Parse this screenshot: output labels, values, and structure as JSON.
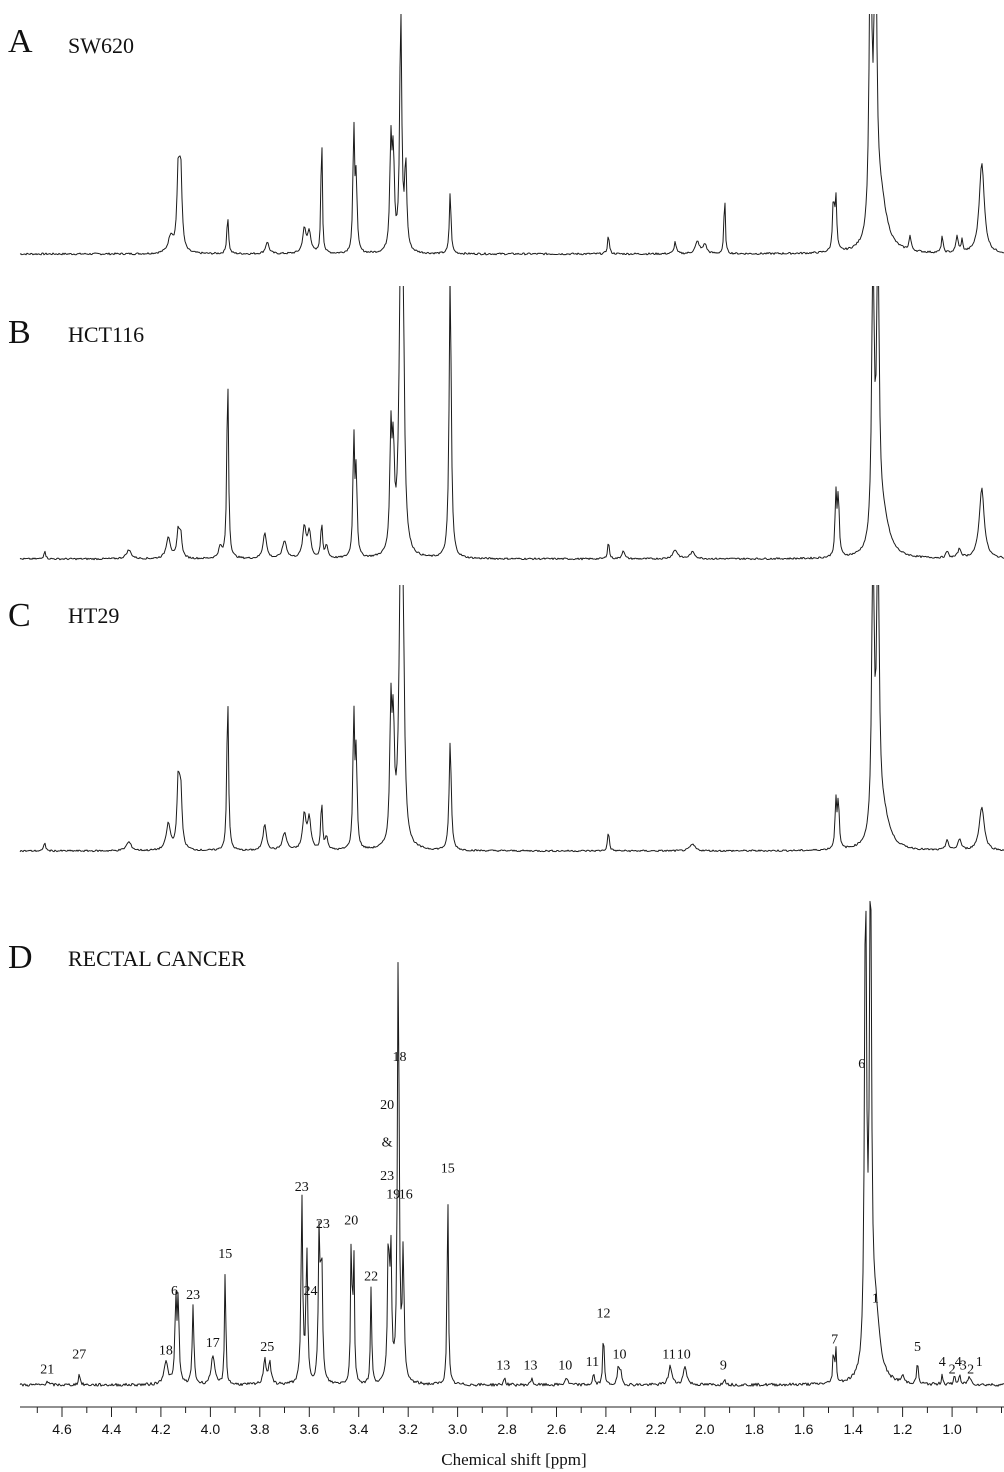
{
  "chart_data": {
    "type": "line",
    "xlabel": "Chemical shift [ppm]",
    "xlim": [
      4.77,
      0.79
    ],
    "x_reversed": true,
    "x_ticks": [
      "4.6",
      "4.4",
      "4.2",
      "4.0",
      "3.8",
      "3.6",
      "3.4",
      "3.2",
      "3.0",
      "2.8",
      "2.6",
      "2.4",
      "2.2",
      "2.0",
      "1.8",
      "1.6",
      "1.4",
      "1.2",
      "1.0"
    ],
    "grid": false,
    "panels": [
      {
        "letter": "A",
        "name": "SW620",
        "linecolor": "#1a1a1a",
        "peaks": [
          {
            "x": 4.13,
            "h": 0.32,
            "w": 0.006
          },
          {
            "x": 4.12,
            "h": 0.33,
            "w": 0.006
          },
          {
            "x": 4.16,
            "h": 0.07,
            "w": 0.012
          },
          {
            "x": 3.93,
            "h": 0.16,
            "w": 0.004
          },
          {
            "x": 3.77,
            "h": 0.05,
            "w": 0.008
          },
          {
            "x": 3.62,
            "h": 0.1,
            "w": 0.008
          },
          {
            "x": 3.6,
            "h": 0.09,
            "w": 0.008
          },
          {
            "x": 3.55,
            "h": 0.55,
            "w": 0.003
          },
          {
            "x": 3.42,
            "h": 0.52,
            "w": 0.004
          },
          {
            "x": 3.41,
            "h": 0.3,
            "w": 0.004
          },
          {
            "x": 3.27,
            "h": 0.44,
            "w": 0.005
          },
          {
            "x": 3.26,
            "h": 0.38,
            "w": 0.005
          },
          {
            "x": 3.23,
            "h": 1.0,
            "w": 0.005
          },
          {
            "x": 3.21,
            "h": 0.36,
            "w": 0.005
          },
          {
            "x": 3.03,
            "h": 0.26,
            "w": 0.004
          },
          {
            "x": 2.39,
            "h": 0.08,
            "w": 0.004
          },
          {
            "x": 2.12,
            "h": 0.05,
            "w": 0.005
          },
          {
            "x": 2.03,
            "h": 0.05,
            "w": 0.01
          },
          {
            "x": 2.0,
            "h": 0.04,
            "w": 0.008
          },
          {
            "x": 1.92,
            "h": 0.26,
            "w": 0.003
          },
          {
            "x": 1.48,
            "h": 0.22,
            "w": 0.004
          },
          {
            "x": 1.47,
            "h": 0.22,
            "w": 0.004
          },
          {
            "x": 1.33,
            "h": 1.3,
            "w": 0.006
          },
          {
            "x": 1.31,
            "h": 1.3,
            "w": 0.006
          },
          {
            "x": 1.29,
            "h": 0.22,
            "w": 0.03
          },
          {
            "x": 1.17,
            "h": 0.06,
            "w": 0.005
          },
          {
            "x": 1.04,
            "h": 0.07,
            "w": 0.004
          },
          {
            "x": 0.98,
            "h": 0.07,
            "w": 0.005
          },
          {
            "x": 0.96,
            "h": 0.05,
            "w": 0.004
          },
          {
            "x": 0.88,
            "h": 0.38,
            "w": 0.012
          }
        ]
      },
      {
        "letter": "B",
        "name": "HCT116",
        "linecolor": "#1a1a1a",
        "peaks": [
          {
            "x": 4.67,
            "h": 0.04,
            "w": 0.004
          },
          {
            "x": 4.33,
            "h": 0.04,
            "w": 0.012
          },
          {
            "x": 4.17,
            "h": 0.1,
            "w": 0.01
          },
          {
            "x": 4.13,
            "h": 0.12,
            "w": 0.006
          },
          {
            "x": 4.12,
            "h": 0.1,
            "w": 0.006
          },
          {
            "x": 3.96,
            "h": 0.05,
            "w": 0.008
          },
          {
            "x": 3.93,
            "h": 0.85,
            "w": 0.004
          },
          {
            "x": 3.78,
            "h": 0.12,
            "w": 0.008
          },
          {
            "x": 3.7,
            "h": 0.08,
            "w": 0.01
          },
          {
            "x": 3.62,
            "h": 0.14,
            "w": 0.008
          },
          {
            "x": 3.6,
            "h": 0.12,
            "w": 0.008
          },
          {
            "x": 3.55,
            "h": 0.16,
            "w": 0.004
          },
          {
            "x": 3.53,
            "h": 0.06,
            "w": 0.006
          },
          {
            "x": 3.42,
            "h": 0.55,
            "w": 0.004
          },
          {
            "x": 3.41,
            "h": 0.38,
            "w": 0.004
          },
          {
            "x": 3.27,
            "h": 0.52,
            "w": 0.005
          },
          {
            "x": 3.26,
            "h": 0.42,
            "w": 0.005
          },
          {
            "x": 3.23,
            "h": 1.3,
            "w": 0.008
          },
          {
            "x": 3.22,
            "h": 0.8,
            "w": 0.006
          },
          {
            "x": 3.03,
            "h": 1.3,
            "w": 0.005
          },
          {
            "x": 2.39,
            "h": 0.08,
            "w": 0.004
          },
          {
            "x": 2.33,
            "h": 0.04,
            "w": 0.006
          },
          {
            "x": 2.12,
            "h": 0.04,
            "w": 0.012
          },
          {
            "x": 2.05,
            "h": 0.03,
            "w": 0.012
          },
          {
            "x": 1.47,
            "h": 0.28,
            "w": 0.004
          },
          {
            "x": 1.46,
            "h": 0.28,
            "w": 0.004
          },
          {
            "x": 1.32,
            "h": 1.3,
            "w": 0.006
          },
          {
            "x": 1.3,
            "h": 1.3,
            "w": 0.006
          },
          {
            "x": 1.28,
            "h": 0.18,
            "w": 0.03
          },
          {
            "x": 1.02,
            "h": 0.03,
            "w": 0.006
          },
          {
            "x": 0.97,
            "h": 0.04,
            "w": 0.008
          },
          {
            "x": 0.88,
            "h": 0.32,
            "w": 0.012
          }
        ]
      },
      {
        "letter": "C",
        "name": "HT29",
        "linecolor": "#1a1a1a",
        "peaks": [
          {
            "x": 4.67,
            "h": 0.04,
            "w": 0.004
          },
          {
            "x": 4.33,
            "h": 0.04,
            "w": 0.012
          },
          {
            "x": 4.17,
            "h": 0.12,
            "w": 0.01
          },
          {
            "x": 4.13,
            "h": 0.3,
            "w": 0.006
          },
          {
            "x": 4.12,
            "h": 0.26,
            "w": 0.006
          },
          {
            "x": 3.93,
            "h": 0.72,
            "w": 0.004
          },
          {
            "x": 3.78,
            "h": 0.12,
            "w": 0.008
          },
          {
            "x": 3.7,
            "h": 0.08,
            "w": 0.01
          },
          {
            "x": 3.62,
            "h": 0.16,
            "w": 0.008
          },
          {
            "x": 3.6,
            "h": 0.14,
            "w": 0.008
          },
          {
            "x": 3.55,
            "h": 0.22,
            "w": 0.004
          },
          {
            "x": 3.53,
            "h": 0.06,
            "w": 0.006
          },
          {
            "x": 3.42,
            "h": 0.62,
            "w": 0.004
          },
          {
            "x": 3.41,
            "h": 0.42,
            "w": 0.004
          },
          {
            "x": 3.27,
            "h": 0.6,
            "w": 0.005
          },
          {
            "x": 3.26,
            "h": 0.5,
            "w": 0.005
          },
          {
            "x": 3.23,
            "h": 1.3,
            "w": 0.008
          },
          {
            "x": 3.22,
            "h": 0.7,
            "w": 0.006
          },
          {
            "x": 3.03,
            "h": 0.5,
            "w": 0.005
          },
          {
            "x": 2.39,
            "h": 0.09,
            "w": 0.004
          },
          {
            "x": 2.05,
            "h": 0.03,
            "w": 0.012
          },
          {
            "x": 1.47,
            "h": 0.22,
            "w": 0.004
          },
          {
            "x": 1.46,
            "h": 0.22,
            "w": 0.004
          },
          {
            "x": 1.32,
            "h": 1.3,
            "w": 0.006
          },
          {
            "x": 1.3,
            "h": 1.3,
            "w": 0.006
          },
          {
            "x": 1.28,
            "h": 0.16,
            "w": 0.03
          },
          {
            "x": 1.02,
            "h": 0.05,
            "w": 0.006
          },
          {
            "x": 0.97,
            "h": 0.05,
            "w": 0.008
          },
          {
            "x": 0.88,
            "h": 0.2,
            "w": 0.012
          }
        ]
      },
      {
        "letter": "D",
        "name": "RECTAL CANCER",
        "linecolor": "#1a1a1a",
        "peaks": [
          {
            "x": 4.66,
            "h": 0.01,
            "w": 0.006
          },
          {
            "x": 4.53,
            "h": 0.03,
            "w": 0.004
          },
          {
            "x": 4.18,
            "h": 0.06,
            "w": 0.01
          },
          {
            "x": 4.14,
            "h": 0.22,
            "w": 0.004
          },
          {
            "x": 4.13,
            "h": 0.22,
            "w": 0.004
          },
          {
            "x": 4.07,
            "h": 0.21,
            "w": 0.004
          },
          {
            "x": 3.99,
            "h": 0.08,
            "w": 0.008
          },
          {
            "x": 3.94,
            "h": 0.32,
            "w": 0.003
          },
          {
            "x": 3.78,
            "h": 0.07,
            "w": 0.006
          },
          {
            "x": 3.76,
            "h": 0.06,
            "w": 0.006
          },
          {
            "x": 3.63,
            "h": 0.5,
            "w": 0.004
          },
          {
            "x": 3.61,
            "h": 0.36,
            "w": 0.004
          },
          {
            "x": 3.56,
            "h": 0.4,
            "w": 0.004
          },
          {
            "x": 3.55,
            "h": 0.34,
            "w": 0.004
          },
          {
            "x": 3.43,
            "h": 0.41,
            "w": 0.003
          },
          {
            "x": 3.42,
            "h": 0.36,
            "w": 0.003
          },
          {
            "x": 3.35,
            "h": 0.26,
            "w": 0.003
          },
          {
            "x": 3.28,
            "h": 0.38,
            "w": 0.004
          },
          {
            "x": 3.27,
            "h": 0.34,
            "w": 0.004
          },
          {
            "x": 3.24,
            "h": 1.2,
            "w": 0.004
          },
          {
            "x": 3.22,
            "h": 0.35,
            "w": 0.004
          },
          {
            "x": 3.04,
            "h": 0.55,
            "w": 0.003
          },
          {
            "x": 2.81,
            "h": 0.02,
            "w": 0.004
          },
          {
            "x": 2.7,
            "h": 0.02,
            "w": 0.004
          },
          {
            "x": 2.56,
            "h": 0.02,
            "w": 0.006
          },
          {
            "x": 2.45,
            "h": 0.03,
            "w": 0.004
          },
          {
            "x": 2.41,
            "h": 0.16,
            "w": 0.003
          },
          {
            "x": 2.35,
            "h": 0.05,
            "w": 0.004
          },
          {
            "x": 2.34,
            "h": 0.04,
            "w": 0.004
          },
          {
            "x": 2.14,
            "h": 0.05,
            "w": 0.008
          },
          {
            "x": 2.08,
            "h": 0.05,
            "w": 0.008
          },
          {
            "x": 1.92,
            "h": 0.02,
            "w": 0.004
          },
          {
            "x": 1.48,
            "h": 0.09,
            "w": 0.003
          },
          {
            "x": 1.47,
            "h": 0.09,
            "w": 0.003
          },
          {
            "x": 1.35,
            "h": 1.3,
            "w": 0.005
          },
          {
            "x": 1.33,
            "h": 1.3,
            "w": 0.005
          },
          {
            "x": 1.31,
            "h": 0.18,
            "w": 0.02
          },
          {
            "x": 1.2,
            "h": 0.02,
            "w": 0.005
          },
          {
            "x": 1.14,
            "h": 0.07,
            "w": 0.003
          },
          {
            "x": 1.04,
            "h": 0.03,
            "w": 0.003
          },
          {
            "x": 0.99,
            "h": 0.03,
            "w": 0.003
          },
          {
            "x": 0.97,
            "h": 0.03,
            "w": 0.003
          },
          {
            "x": 0.93,
            "h": 0.02,
            "w": 0.008
          }
        ],
        "peak_labels": [
          {
            "text": "21",
            "x": 4.66,
            "y": 0.01
          },
          {
            "text": "27",
            "x": 4.53,
            "y": 0.05
          },
          {
            "text": "18",
            "x": 4.18,
            "y": 0.06
          },
          {
            "text": "6",
            "x": 4.145,
            "y": 0.22
          },
          {
            "text": "23",
            "x": 4.07,
            "y": 0.21
          },
          {
            "text": "17",
            "x": 3.99,
            "y": 0.08
          },
          {
            "text": "15",
            "x": 3.94,
            "y": 0.32
          },
          {
            "text": "25",
            "x": 3.77,
            "y": 0.07
          },
          {
            "text": "23",
            "x": 3.63,
            "y": 0.5
          },
          {
            "text": "24",
            "x": 3.595,
            "y": 0.22
          },
          {
            "text": "23",
            "x": 3.545,
            "y": 0.4
          },
          {
            "text": "20",
            "x": 3.43,
            "y": 0.41
          },
          {
            "text": "22",
            "x": 3.35,
            "y": 0.26
          },
          {
            "text": "20",
            "x": 3.285,
            "y": 0.72
          },
          {
            "text": "&",
            "x": 3.285,
            "y": 0.62
          },
          {
            "text": "23",
            "x": 3.285,
            "y": 0.53
          },
          {
            "text": "19",
            "x": 3.26,
            "y": 0.48
          },
          {
            "text": "16",
            "x": 3.21,
            "y": 0.48
          },
          {
            "text": "18",
            "x": 3.235,
            "y": 0.85
          },
          {
            "text": "15",
            "x": 3.04,
            "y": 0.55
          },
          {
            "text": "13",
            "x": 2.815,
            "y": 0.02
          },
          {
            "text": "13",
            "x": 2.705,
            "y": 0.02
          },
          {
            "text": "10",
            "x": 2.565,
            "y": 0.02
          },
          {
            "text": "11",
            "x": 2.455,
            "y": 0.03
          },
          {
            "text": "12",
            "x": 2.41,
            "y": 0.16
          },
          {
            "text": "10",
            "x": 2.345,
            "y": 0.05
          },
          {
            "text": "11",
            "x": 2.145,
            "y": 0.05
          },
          {
            "text": "10",
            "x": 2.085,
            "y": 0.05
          },
          {
            "text": "9",
            "x": 1.925,
            "y": 0.02
          },
          {
            "text": "7",
            "x": 1.475,
            "y": 0.09
          },
          {
            "text": "6",
            "x": 1.365,
            "y": 0.83
          },
          {
            "text": "1",
            "x": 1.31,
            "y": 0.2
          },
          {
            "text": "5",
            "x": 1.14,
            "y": 0.07
          },
          {
            "text": "4",
            "x": 1.04,
            "y": 0.03
          },
          {
            "text": "2",
            "x": 1.0,
            "y": 0.01
          },
          {
            "text": "4",
            "x": 0.975,
            "y": 0.03
          },
          {
            "text": "3",
            "x": 0.955,
            "y": 0.02
          },
          {
            "text": "2",
            "x": 0.925,
            "y": 0.01
          },
          {
            "text": "1",
            "x": 0.89,
            "y": 0.03
          }
        ]
      }
    ]
  }
}
